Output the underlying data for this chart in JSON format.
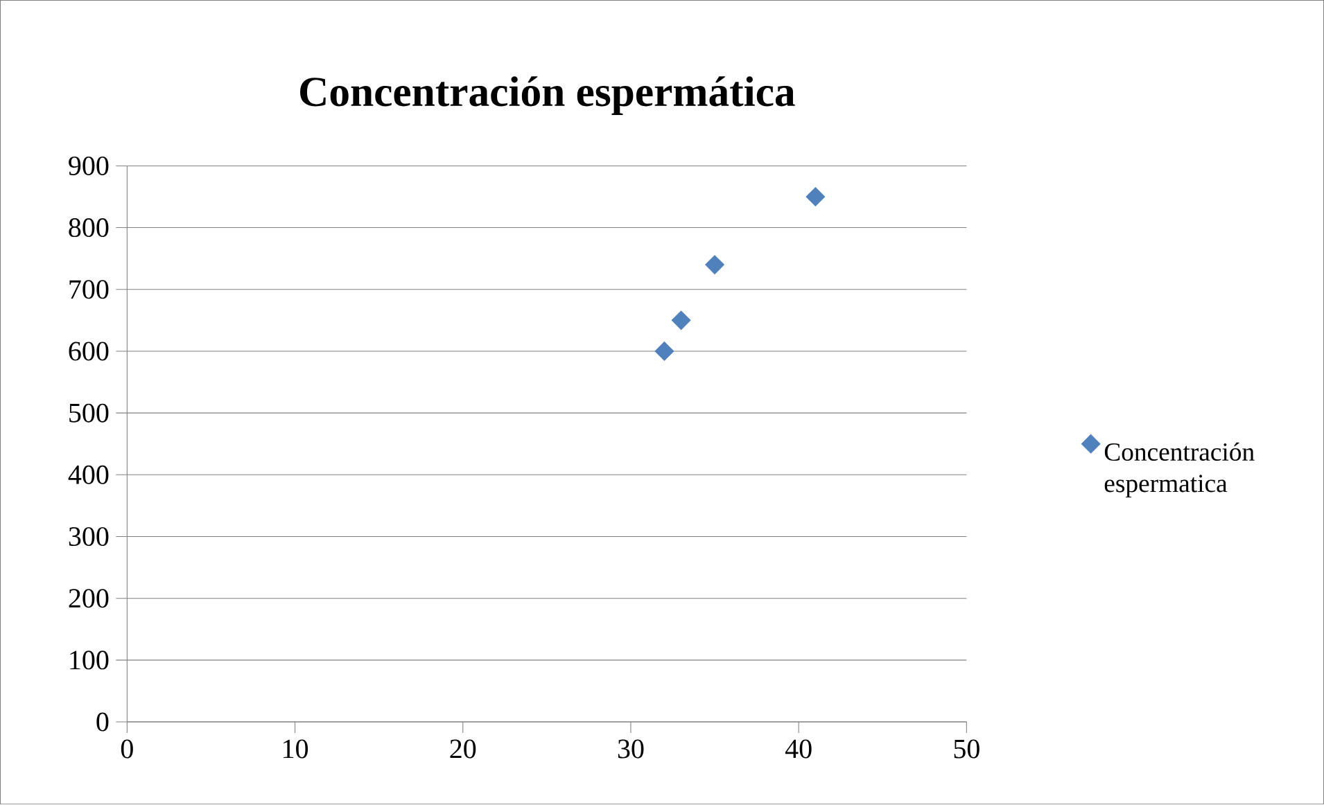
{
  "chart_data": {
    "type": "scatter",
    "title": "Concentración espermática",
    "x": [
      32,
      33,
      35,
      41
    ],
    "series": [
      {
        "name": "Concentración espermatica",
        "color": "#4f81bd",
        "values": [
          600,
          650,
          740,
          850
        ]
      }
    ],
    "xlim": [
      0,
      50
    ],
    "xticks": [
      0,
      10,
      20,
      30,
      40,
      50
    ],
    "ylim": [
      0,
      900
    ],
    "yticks": [
      0,
      100,
      200,
      300,
      400,
      500,
      600,
      700,
      800,
      900
    ],
    "grid": "y",
    "legend": "right",
    "marker": "diamond"
  }
}
